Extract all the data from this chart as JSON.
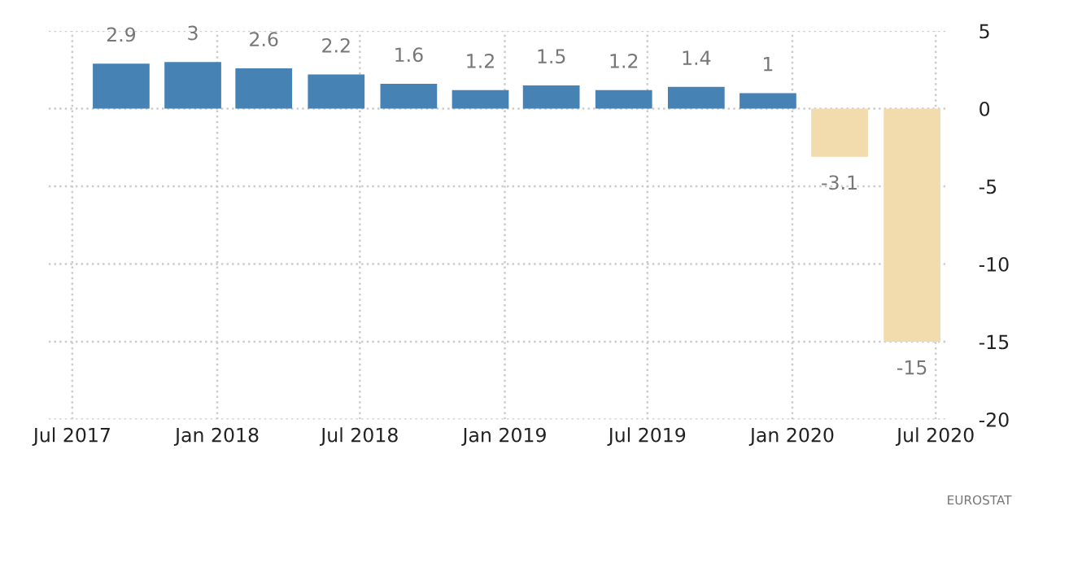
{
  "chart_data": {
    "type": "bar",
    "x": [
      "2017-09-01",
      "2017-12-01",
      "2018-03-01",
      "2018-06-01",
      "2018-09-01",
      "2018-12-01",
      "2019-03-01",
      "2019-06-01",
      "2019-09-01",
      "2019-12-01",
      "2020-03-01",
      "2020-06-01"
    ],
    "values": [
      2.9,
      3,
      2.6,
      2.2,
      1.6,
      1.2,
      1.5,
      1.2,
      1.4,
      1,
      -3.1,
      -15
    ],
    "colors": [
      "#4682b4",
      "#4682b4",
      "#4682b4",
      "#4682b4",
      "#4682b4",
      "#4682b4",
      "#4682b4",
      "#4682b4",
      "#4682b4",
      "#4682b4",
      "#f2dbac",
      "#f2dbac"
    ],
    "data_labels": true,
    "xlim": [
      "2017-06-01",
      "2020-07-15"
    ],
    "xticks": [
      {
        "value": "2017-07",
        "label": "Jul 2017"
      },
      {
        "value": "2018-01",
        "label": "Jan 2018"
      },
      {
        "value": "2018-07",
        "label": "Jul 2018"
      },
      {
        "value": "2019-01",
        "label": "Jan 2019"
      },
      {
        "value": "2019-07",
        "label": "Jul 2019"
      },
      {
        "value": "2020-01",
        "label": "Jan 2020"
      },
      {
        "value": "2020-07",
        "label": "Jul 2020"
      }
    ],
    "ylim": [
      -20,
      5
    ],
    "yticks": [
      -20,
      -15,
      -10,
      -5,
      0,
      5
    ],
    "grid": true,
    "annotations": [
      "EUROSTAT"
    ]
  }
}
